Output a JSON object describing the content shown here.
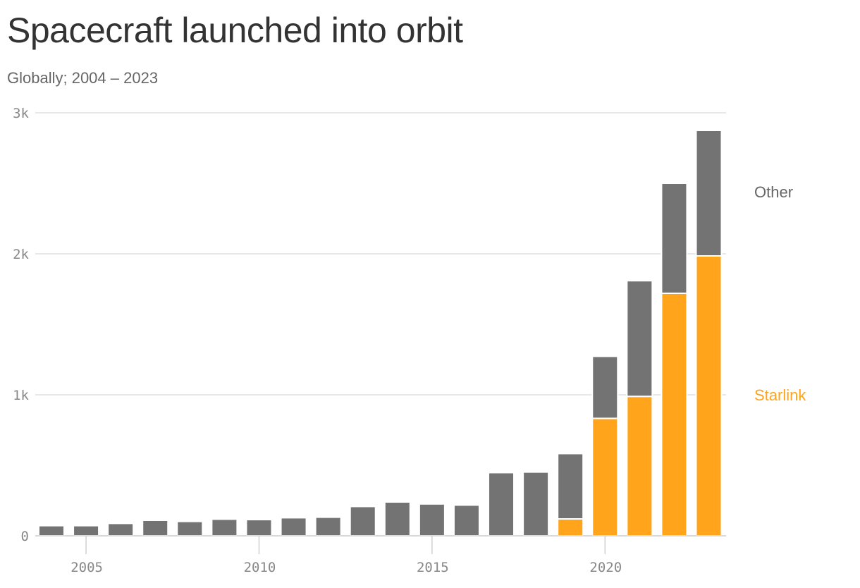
{
  "title": "Spacecraft launched into orbit",
  "subtitle": "Globally; 2004 – 2023",
  "chart_data": {
    "type": "bar",
    "stacked": true,
    "title": "Spacecraft launched into orbit",
    "subtitle": "Globally; 2004 – 2023",
    "xlabel": "",
    "ylabel": "",
    "ylim": [
      0,
      3000
    ],
    "grid": true,
    "legend_placement": "right",
    "categories": [
      2004,
      2005,
      2006,
      2007,
      2008,
      2009,
      2010,
      2011,
      2012,
      2013,
      2014,
      2015,
      2016,
      2017,
      2018,
      2019,
      2020,
      2021,
      2022,
      2023
    ],
    "x_ticks": [
      {
        "value": 2005,
        "label": "2005"
      },
      {
        "value": 2010,
        "label": "2010"
      },
      {
        "value": 2015,
        "label": "2015"
      },
      {
        "value": 2020,
        "label": "2020"
      }
    ],
    "y_ticks": [
      {
        "value": 0,
        "label": "0"
      },
      {
        "value": 1000,
        "label": "1k"
      },
      {
        "value": 2000,
        "label": "2k"
      },
      {
        "value": 3000,
        "label": "3k"
      }
    ],
    "series": [
      {
        "name": "Starlink",
        "color": "#FFA41B",
        "values": [
          0,
          0,
          0,
          0,
          0,
          0,
          0,
          0,
          0,
          0,
          0,
          0,
          0,
          0,
          0,
          120,
          833,
          989,
          1720,
          1985
        ]
      },
      {
        "name": "Other",
        "color": "#737373",
        "values": [
          72,
          72,
          88,
          110,
          102,
          118,
          115,
          128,
          132,
          208,
          240,
          226,
          218,
          448,
          452,
          463,
          440,
          820,
          780,
          890
        ]
      }
    ]
  }
}
